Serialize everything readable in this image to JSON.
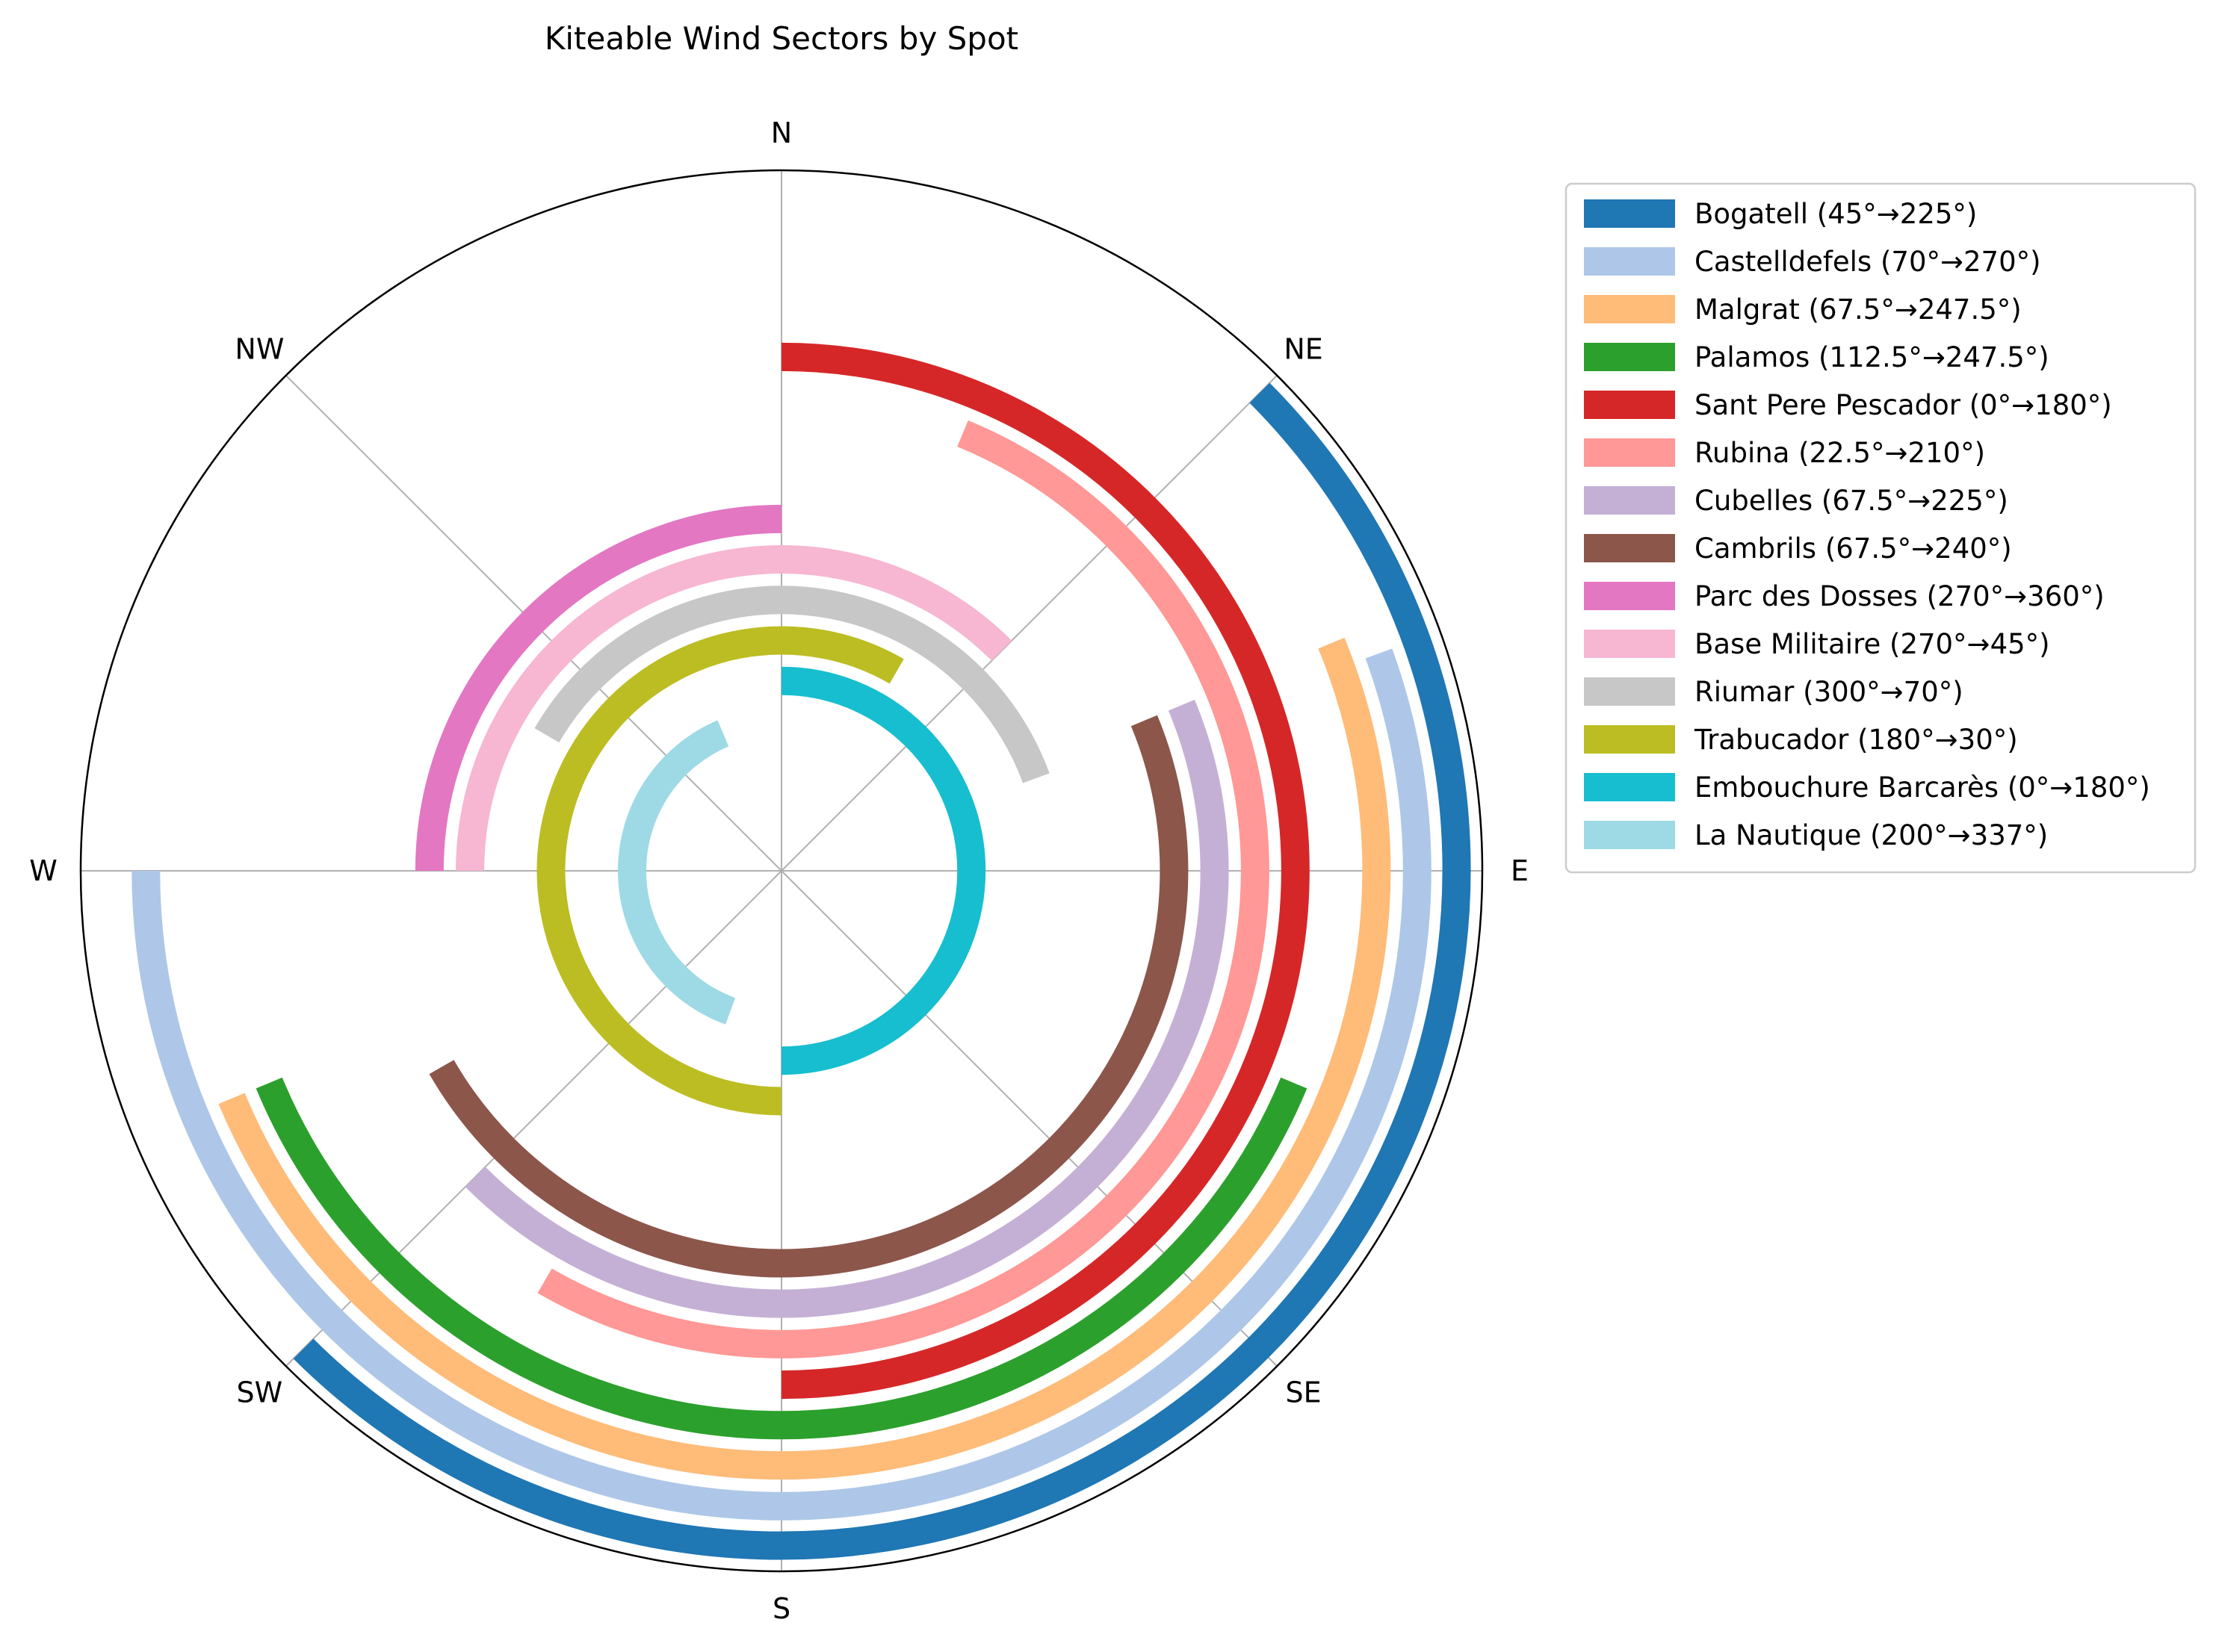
{
  "chart_data": {
    "type": "polar_arc",
    "title": "Kiteable Wind Sectors by Spot",
    "direction_labels": [
      "N",
      "NE",
      "E",
      "SE",
      "S",
      "SW",
      "W",
      "NW"
    ],
    "grid": true,
    "legend_placement": "outside-right",
    "series": [
      {
        "name": "Bogatell (45°→225°)",
        "start": 45,
        "end": 225,
        "color": "#1f77b4"
      },
      {
        "name": "Castelldefels (70°→270°)",
        "start": 70,
        "end": 270,
        "color": "#aec7e8"
      },
      {
        "name": "Malgrat (67.5°→247.5°)",
        "start": 67.5,
        "end": 247.5,
        "color": "#ffbb78"
      },
      {
        "name": "Palamos (112.5°→247.5°)",
        "start": 112.5,
        "end": 247.5,
        "color": "#2ca02c"
      },
      {
        "name": "Sant Pere Pescador (0°→180°)",
        "start": 0,
        "end": 180,
        "color": "#d62728"
      },
      {
        "name": "Rubina (22.5°→210°)",
        "start": 22.5,
        "end": 210,
        "color": "#ff9896"
      },
      {
        "name": "Cubelles (67.5°→225°)",
        "start": 67.5,
        "end": 225,
        "color": "#c5b0d5"
      },
      {
        "name": "Cambrils (67.5°→240°)",
        "start": 67.5,
        "end": 240,
        "color": "#8c564b"
      },
      {
        "name": "Parc des Dosses (270°→360°)",
        "start": 270,
        "end": 360,
        "color": "#e377c2"
      },
      {
        "name": "Base Militaire (270°→45°)",
        "start": 270,
        "end": 45,
        "color": "#f7b6d2"
      },
      {
        "name": "Riumar (300°→70°)",
        "start": 300,
        "end": 70,
        "color": "#c7c7c7"
      },
      {
        "name": "Trabucador (180°→30°)",
        "start": 180,
        "end": 30,
        "color": "#bcbd22"
      },
      {
        "name": "Embouchure Barcarès (0°→180°)",
        "start": 0,
        "end": 180,
        "color": "#17becf"
      },
      {
        "name": "La Nautique (200°→337°)",
        "start": 200,
        "end": 337,
        "color": "#9edae5"
      }
    ]
  }
}
